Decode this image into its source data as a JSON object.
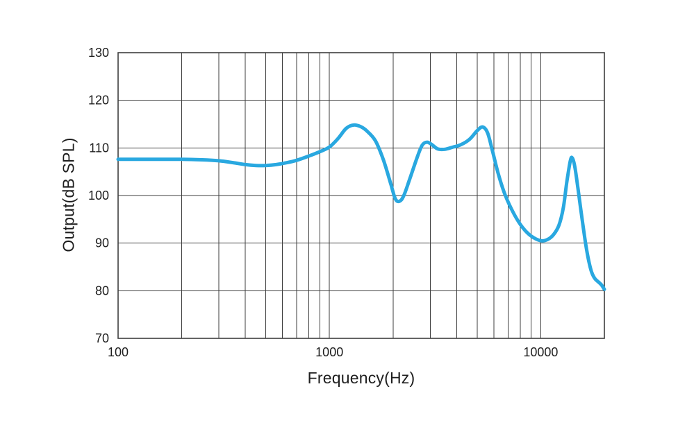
{
  "figure": {
    "background": "#ffffff"
  },
  "chart_data": {
    "type": "line",
    "title": "",
    "xlabel": "Frequency(Hz)",
    "ylabel": "Output(dB SPL)",
    "x_scale": "log",
    "xlim": [
      100,
      20000
    ],
    "ylim": [
      70,
      130
    ],
    "grid": true,
    "legend": "none",
    "grid_color": "#3d3d3d",
    "border_color": "#3d3d3d",
    "text_color": "#1e1e1e",
    "x_ticks": [
      {
        "value": 100,
        "label": "100"
      },
      {
        "value": 1000,
        "label": "1000"
      },
      {
        "value": 10000,
        "label": "10000"
      }
    ],
    "y_ticks": [
      {
        "value": 70,
        "label": "70"
      },
      {
        "value": 80,
        "label": "80"
      },
      {
        "value": 90,
        "label": "90"
      },
      {
        "value": 100,
        "label": "100"
      },
      {
        "value": 110,
        "label": "110"
      },
      {
        "value": 120,
        "label": "120"
      },
      {
        "value": 130,
        "label": "130"
      }
    ],
    "x_gridlines": [
      100,
      200,
      300,
      400,
      500,
      600,
      700,
      800,
      900,
      1000,
      2000,
      3000,
      4000,
      5000,
      6000,
      7000,
      8000,
      9000,
      10000,
      20000
    ],
    "y_gridlines": [
      70,
      80,
      90,
      100,
      110,
      120,
      130
    ],
    "series": [
      {
        "name": "frequency-response",
        "color": "#29a8e0",
        "width": 5,
        "points": [
          [
            100,
            107.6
          ],
          [
            130,
            107.6
          ],
          [
            160,
            107.6
          ],
          [
            200,
            107.6
          ],
          [
            250,
            107.5
          ],
          [
            300,
            107.3
          ],
          [
            350,
            106.9
          ],
          [
            400,
            106.5
          ],
          [
            450,
            106.3
          ],
          [
            500,
            106.3
          ],
          [
            560,
            106.5
          ],
          [
            630,
            106.9
          ],
          [
            700,
            107.4
          ],
          [
            800,
            108.3
          ],
          [
            900,
            109.2
          ],
          [
            1000,
            110.2
          ],
          [
            1100,
            112.0
          ],
          [
            1200,
            114.1
          ],
          [
            1300,
            114.8
          ],
          [
            1400,
            114.5
          ],
          [
            1500,
            113.6
          ],
          [
            1650,
            111.5
          ],
          [
            1800,
            107.5
          ],
          [
            1950,
            102.5
          ],
          [
            2050,
            99.3
          ],
          [
            2150,
            98.8
          ],
          [
            2250,
            100.0
          ],
          [
            2400,
            103.5
          ],
          [
            2600,
            108.0
          ],
          [
            2750,
            110.6
          ],
          [
            2900,
            111.2
          ],
          [
            3050,
            110.7
          ],
          [
            3250,
            109.8
          ],
          [
            3500,
            109.7
          ],
          [
            3800,
            110.1
          ],
          [
            4200,
            110.7
          ],
          [
            4600,
            111.8
          ],
          [
            5000,
            113.6
          ],
          [
            5300,
            114.4
          ],
          [
            5600,
            113.2
          ],
          [
            5900,
            109.5
          ],
          [
            6300,
            104.5
          ],
          [
            6800,
            100.0
          ],
          [
            7500,
            96.0
          ],
          [
            8200,
            93.3
          ],
          [
            9000,
            91.5
          ],
          [
            10000,
            90.5
          ],
          [
            10800,
            90.8
          ],
          [
            11500,
            91.8
          ],
          [
            12200,
            93.8
          ],
          [
            12800,
            97.5
          ],
          [
            13300,
            103.0
          ],
          [
            13800,
            107.3
          ],
          [
            14100,
            107.9
          ],
          [
            14500,
            106.0
          ],
          [
            15000,
            101.5
          ],
          [
            15700,
            95.0
          ],
          [
            16500,
            88.5
          ],
          [
            17300,
            84.3
          ],
          [
            18000,
            82.6
          ],
          [
            18800,
            81.8
          ],
          [
            19400,
            81.2
          ],
          [
            20000,
            80.3
          ]
        ]
      }
    ]
  }
}
